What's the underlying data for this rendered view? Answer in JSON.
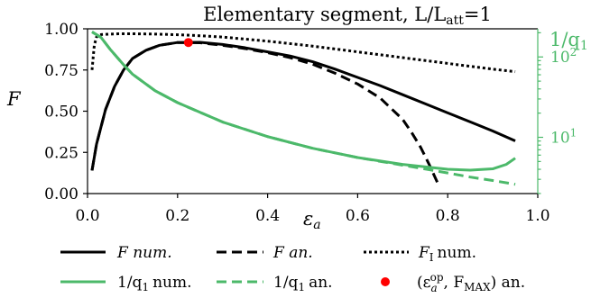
{
  "chart_data": {
    "type": "line",
    "title": "Elementary segment, L/L",
    "title_sub": "att",
    "title_suffix": "=1",
    "xlabel_main": "ε",
    "xlabel_sub": "a",
    "ylabel_left": "F",
    "ylabel_right_main": "1/q",
    "ylabel_right_sub": "1",
    "xlim": [
      0.0,
      1.0
    ],
    "ylim_left": [
      0.0,
      1.0
    ],
    "ylim_right_log10": [
      0.3,
      2.35
    ],
    "x_ticks": [
      "0.0",
      "0.2",
      "0.4",
      "0.6",
      "0.8",
      "1.0"
    ],
    "y_ticks_left": [
      "0.00",
      "0.25",
      "0.50",
      "0.75",
      "1.00"
    ],
    "y_ticks_right": [
      {
        "value": 10,
        "base": "10",
        "exp": "1"
      },
      {
        "value": 100,
        "base": "10",
        "exp": "2"
      }
    ],
    "grid": false,
    "legend_position": "below",
    "colors": {
      "black": "#000000",
      "green": "#4cb96a",
      "red": "#ff0000"
    },
    "series": [
      {
        "name": "F num.",
        "axis": "left",
        "style": "solid",
        "color": "#000000",
        "x": [
          0.01,
          0.02,
          0.04,
          0.06,
          0.08,
          0.1,
          0.13,
          0.16,
          0.2,
          0.25,
          0.3,
          0.35,
          0.4,
          0.45,
          0.5,
          0.55,
          0.6,
          0.65,
          0.7,
          0.75,
          0.8,
          0.85,
          0.9,
          0.95
        ],
        "y": [
          0.14,
          0.3,
          0.51,
          0.65,
          0.75,
          0.82,
          0.87,
          0.9,
          0.917,
          0.918,
          0.905,
          0.885,
          0.86,
          0.835,
          0.8,
          0.755,
          0.705,
          0.655,
          0.6,
          0.545,
          0.49,
          0.435,
          0.38,
          0.32
        ]
      },
      {
        "name": "F an.",
        "axis": "left",
        "style": "dashed",
        "color": "#000000",
        "x": [
          0.01,
          0.02,
          0.04,
          0.06,
          0.08,
          0.1,
          0.13,
          0.16,
          0.2,
          0.25,
          0.3,
          0.35,
          0.4,
          0.45,
          0.5,
          0.55,
          0.6,
          0.65,
          0.7,
          0.72,
          0.74,
          0.76,
          0.78
        ],
        "y": [
          0.14,
          0.3,
          0.51,
          0.65,
          0.75,
          0.82,
          0.87,
          0.9,
          0.917,
          0.915,
          0.9,
          0.88,
          0.855,
          0.825,
          0.785,
          0.73,
          0.665,
          0.58,
          0.45,
          0.37,
          0.28,
          0.17,
          0.05
        ]
      },
      {
        "name": "F",
        "name_sub": "I",
        "name_suffix": "num.",
        "axis": "left",
        "style": "dotted",
        "color": "#000000",
        "x": [
          0.01,
          0.015,
          0.02,
          0.025,
          0.03,
          0.05,
          0.07,
          0.1,
          0.15,
          0.2,
          0.25,
          0.3,
          0.4,
          0.5,
          0.6,
          0.7,
          0.8,
          0.9,
          0.95
        ],
        "y": [
          0.75,
          0.9,
          0.95,
          0.962,
          0.965,
          0.968,
          0.97,
          0.97,
          0.968,
          0.964,
          0.958,
          0.95,
          0.925,
          0.895,
          0.86,
          0.825,
          0.79,
          0.755,
          0.74
        ]
      },
      {
        "name": "1/q",
        "name_sub": "1",
        "name_suffix": "num.",
        "axis": "right",
        "style": "solid",
        "color": "#4cb96a",
        "x": [
          0.01,
          0.03,
          0.05,
          0.08,
          0.1,
          0.15,
          0.2,
          0.3,
          0.4,
          0.5,
          0.6,
          0.7,
          0.8,
          0.85,
          0.9,
          0.93,
          0.95
        ],
        "y": [
          205,
          175,
          125,
          80,
          61,
          38,
          27,
          15.5,
          10.2,
          7.3,
          5.6,
          4.6,
          4.0,
          3.9,
          4.05,
          4.6,
          5.5
        ]
      },
      {
        "name": "1/q",
        "name_sub": "1",
        "name_suffix": "an.",
        "axis": "right",
        "style": "dashed",
        "color": "#4cb96a",
        "x": [
          0.01,
          0.03,
          0.05,
          0.08,
          0.1,
          0.15,
          0.2,
          0.3,
          0.4,
          0.5,
          0.6,
          0.7,
          0.8,
          0.85,
          0.9,
          0.95
        ],
        "y": [
          205,
          175,
          125,
          80,
          61,
          38,
          27,
          15.5,
          10.2,
          7.3,
          5.6,
          4.5,
          3.6,
          3.2,
          2.9,
          2.6
        ]
      },
      {
        "name": "(ε",
        "name_sub": "a",
        "name_sup": "op",
        "name_mid": ", F",
        "name_sub2": "MAX",
        "name_suffix": ") an.",
        "axis": "left",
        "style": "marker",
        "color": "#ff0000",
        "x": [
          0.224
        ],
        "y": [
          0.917
        ]
      }
    ]
  }
}
